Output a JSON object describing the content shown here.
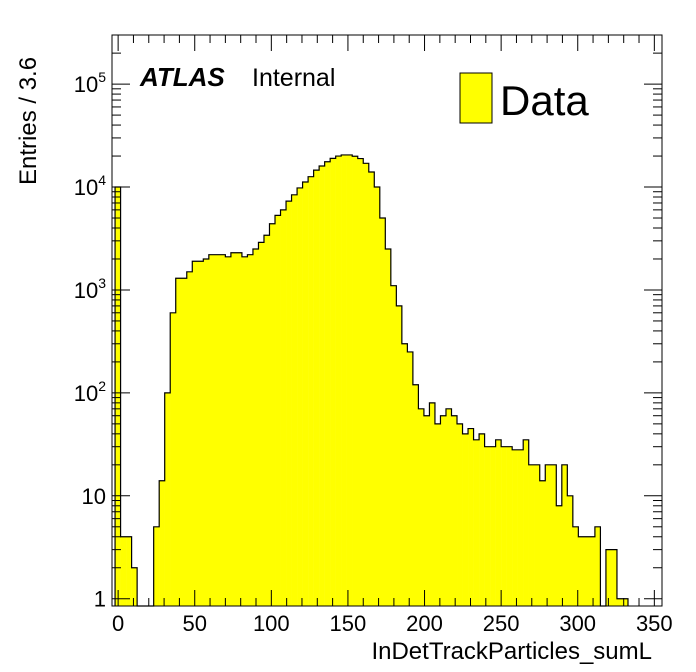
{
  "chart_data": {
    "type": "bar",
    "histogram": true,
    "bin_width": 3.6,
    "x_start": -2,
    "xlabel": "InDetTrackParticles_sumL",
    "ylabel": "Entries / 3.6",
    "xlim": [
      -4,
      355
    ],
    "ylim": [
      0.85,
      300000
    ],
    "yscale": "log",
    "x_ticks": [
      {
        "value": 0,
        "label": "0"
      },
      {
        "value": 50,
        "label": "50"
      },
      {
        "value": 100,
        "label": "100"
      },
      {
        "value": 150,
        "label": "150"
      },
      {
        "value": 200,
        "label": "200"
      },
      {
        "value": 250,
        "label": "250"
      },
      {
        "value": 300,
        "label": "300"
      },
      {
        "value": 350,
        "label": "350"
      }
    ],
    "y_ticks": [
      {
        "value": 1,
        "base": "1",
        "exp": ""
      },
      {
        "value": 10,
        "base": "10",
        "exp": ""
      },
      {
        "value": 100,
        "base": "10",
        "exp": "2"
      },
      {
        "value": 1000,
        "base": "10",
        "exp": "3"
      },
      {
        "value": 10000,
        "base": "10",
        "exp": "4"
      },
      {
        "value": 100000,
        "base": "10",
        "exp": "5"
      }
    ],
    "legend": {
      "label": "Data",
      "color": "#ffff00",
      "position": "top-right"
    },
    "atlas_label": {
      "bold": "ATLAS",
      "text": "Internal"
    },
    "fill_color": "#ffff00",
    "line_color": "#000000",
    "values": [
      10000,
      4,
      4,
      2,
      0,
      0,
      0,
      5,
      14,
      100,
      600,
      1300,
      1300,
      1500,
      1900,
      1900,
      2000,
      2200,
      2200,
      2200,
      2100,
      2300,
      2300,
      2100,
      2200,
      2500,
      2900,
      3400,
      4400,
      5300,
      6000,
      7300,
      8400,
      9800,
      11200,
      12600,
      14600,
      16000,
      17600,
      19000,
      20000,
      20500,
      20500,
      19900,
      18900,
      17000,
      14000,
      10000,
      5000,
      2500,
      1100,
      700,
      300,
      250,
      120,
      70,
      60,
      80,
      50,
      60,
      70,
      60,
      50,
      40,
      45,
      35,
      40,
      30,
      30,
      35,
      30,
      30,
      28,
      28,
      35,
      20,
      20,
      14,
      20,
      20,
      8,
      20,
      10,
      5,
      4,
      4,
      4,
      5,
      0,
      3,
      3,
      1,
      1
    ]
  }
}
